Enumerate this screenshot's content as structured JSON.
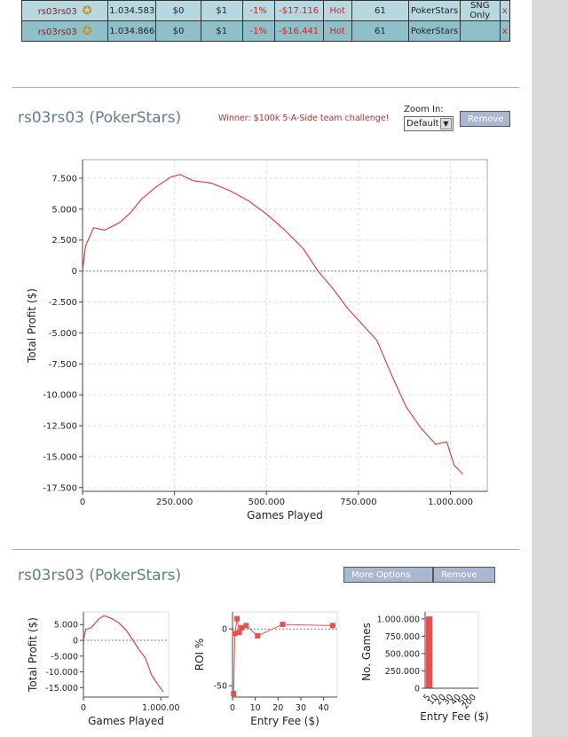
{
  "results_table": {
    "rows": [
      {
        "player": "rs03rs03",
        "games": "1.034.583",
        "c1": "$0",
        "c2": "$1",
        "roi": "-1%",
        "profit": "-$17.116",
        "status": "Hot",
        "count": "61",
        "network": "PokerStars",
        "type": "SNG Only",
        "remove": "x"
      },
      {
        "player": "rs03rs03",
        "games": "1.034.866",
        "c1": "$0",
        "c2": "$1",
        "roi": "-1%",
        "profit": "-$16.441",
        "status": "Hot",
        "count": "61",
        "network": "PokerStars",
        "type": "",
        "remove": "x"
      }
    ]
  },
  "panel1": {
    "title": "rs03rs03 (PokerStars)",
    "winner": "Winner: $100k 5-A-Side team challenge!",
    "zoom_label": "Zoom In:",
    "zoom_value": "Default",
    "remove_label": "Remove"
  },
  "panel2": {
    "title": "rs03rs03 (PokerStars)",
    "more_options_label": "More Options",
    "remove_label": "Remove"
  },
  "chart_data": [
    {
      "type": "line",
      "xlabel": "Games Played",
      "ylabel": "Total Profit ($)",
      "xlim": [
        0,
        1100000
      ],
      "ylim": [
        -17800,
        9000
      ],
      "xticks": [
        0,
        250000,
        500000,
        750000,
        1000000
      ],
      "xtick_labels": [
        "0",
        "250.000",
        "500.000",
        "750.000",
        "1.000.000"
      ],
      "yticks": [
        7500,
        5000,
        2500,
        0,
        -2500,
        -5000,
        -7500,
        -10000,
        -12500,
        -15000,
        -17500
      ],
      "ytick_labels": [
        "7.500",
        "5.000",
        "2.500",
        "0",
        "-2.500",
        "-5.000",
        "-7.500",
        "-10.000",
        "-12.500",
        "-15.000",
        "-17.500"
      ],
      "grid": true,
      "series": [
        {
          "color": "#d9453a",
          "x": [
            0,
            8000,
            30000,
            60000,
            100000,
            130000,
            160000,
            200000,
            240000,
            265000,
            300000,
            350000,
            400000,
            450000,
            500000,
            550000,
            600000,
            640000,
            680000,
            720000,
            760000,
            800000,
            840000,
            880000,
            920000,
            960000,
            990000,
            1010000,
            1034000
          ],
          "y": [
            0,
            2000,
            3500,
            3300,
            3900,
            4700,
            5800,
            6800,
            7600,
            7800,
            7300,
            7100,
            6500,
            5700,
            4600,
            3300,
            1800,
            0,
            -1400,
            -3000,
            -4300,
            -5600,
            -8400,
            -11000,
            -12700,
            -14000,
            -13800,
            -15700,
            -16400
          ]
        }
      ]
    },
    {
      "type": "line",
      "xlabel": "Games Played",
      "ylabel": "Total Profit ($)",
      "xlim": [
        0,
        1100000
      ],
      "ylim": [
        -18000,
        9000
      ],
      "xticks": [
        0,
        1000000
      ],
      "xtick_labels": [
        "0",
        "1.000.00"
      ],
      "yticks": [
        5000,
        0,
        -5000,
        -10000,
        -15000
      ],
      "ytick_labels": [
        "5.000",
        "0",
        "-5.000",
        "-10.000",
        "-15.000"
      ],
      "grid": false,
      "series": [
        {
          "color": "#d9453a",
          "x": [
            0,
            30000,
            100000,
            200000,
            265000,
            350000,
            450000,
            550000,
            640000,
            720000,
            800000,
            880000,
            960000,
            1034000
          ],
          "y": [
            0,
            3500,
            4000,
            6800,
            7800,
            7100,
            5700,
            3300,
            0,
            -3000,
            -5600,
            -11000,
            -14000,
            -16400
          ]
        }
      ]
    },
    {
      "type": "scatter",
      "xlabel": "Entry Fee ($)",
      "ylabel": "ROI %",
      "xlim": [
        0,
        46
      ],
      "ylim": [
        -60,
        15
      ],
      "xticks": [
        0,
        10,
        20,
        30,
        40
      ],
      "xtick_labels": [
        "0",
        "10",
        "20",
        "30",
        "40"
      ],
      "yticks": [
        0,
        -50
      ],
      "ytick_labels": [
        "0",
        "-50"
      ],
      "series": [
        {
          "color": "#e85050",
          "x": [
            0.5,
            1,
            2,
            3,
            4,
            6,
            11,
            22,
            44
          ],
          "y": [
            -57,
            -4,
            9,
            -3,
            1,
            3,
            -6,
            4,
            3
          ]
        }
      ]
    },
    {
      "type": "bar",
      "xlabel": "Entry Fee ($)",
      "ylabel": "No. Games",
      "categories": [
        "5",
        "10",
        "20",
        "30",
        "40",
        "50",
        "200"
      ],
      "ylim": [
        0,
        1100000
      ],
      "yticks": [
        0,
        250000,
        500000,
        750000,
        1000000
      ],
      "ytick_labels": [
        "0",
        "250.000",
        "500.000",
        "750.000",
        "1.000.000"
      ],
      "values": [
        1034583,
        0,
        0,
        0,
        0,
        0,
        0
      ],
      "color": "#e85050"
    }
  ]
}
